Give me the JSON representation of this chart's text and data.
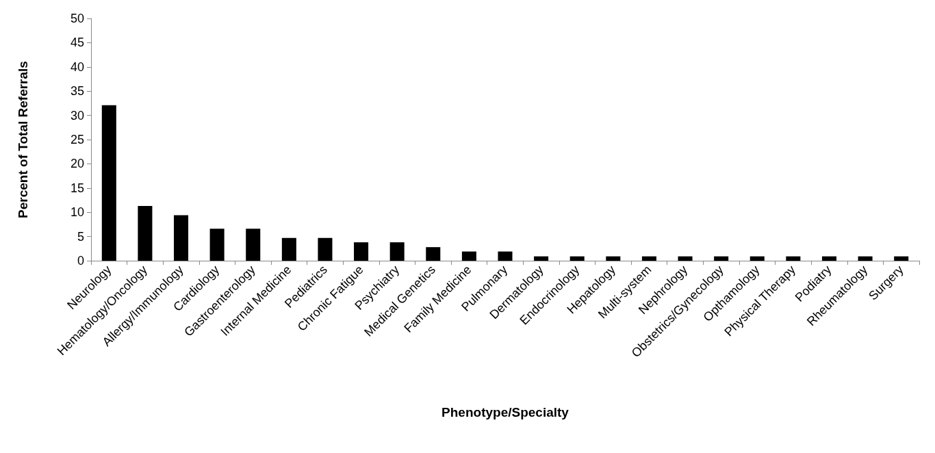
{
  "chart_data": {
    "type": "bar",
    "xlabel": "Phenotype/Specialty",
    "ylabel": "Percent of Total Referrals",
    "categories": [
      "Neurology",
      "Hematology/Oncology",
      "Allergy/Immunology",
      "Cardiology",
      "Gastroenterology",
      "Internal Medicine",
      "Pediatrics",
      "Chronic Fatigue",
      "Psychiatry",
      "Medical Genetics",
      "Family Medicine",
      "Pulmonary",
      "Dermatology",
      "Endocrinology",
      "Hepatology",
      "Multi-system",
      "Nephrology",
      "Obstetrics/Gynecology",
      "Opthamology",
      "Physical Therapy",
      "Podiatry",
      "Rheumatology",
      "Surgery"
    ],
    "values": [
      32.1,
      11.3,
      9.4,
      6.6,
      6.6,
      4.7,
      4.7,
      3.8,
      3.8,
      2.8,
      1.9,
      1.9,
      0.9,
      0.9,
      0.9,
      0.9,
      0.9,
      0.9,
      0.9,
      0.9,
      0.9,
      0.9,
      0.9
    ],
    "color": "#000000",
    "ylim": [
      0,
      50
    ],
    "yticks": [
      0,
      5,
      10,
      15,
      20,
      25,
      30,
      35,
      40,
      45,
      50
    ],
    "grid": false
  }
}
